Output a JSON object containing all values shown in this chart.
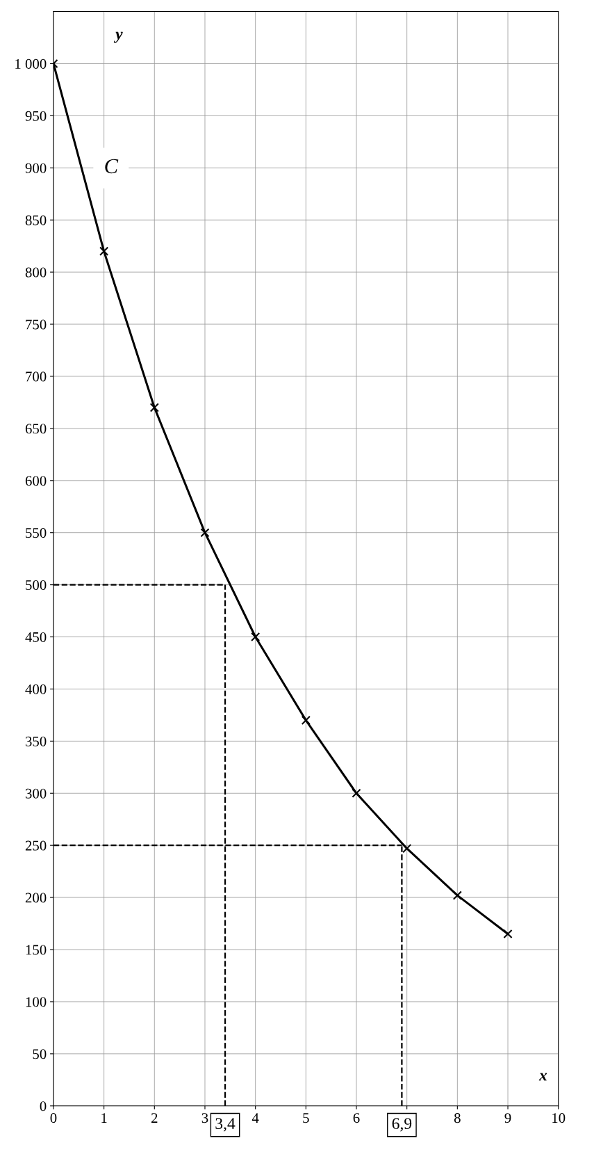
{
  "chart_data": {
    "type": "line",
    "xlabel": "x",
    "ylabel": "y",
    "x": [
      0,
      1,
      2,
      3,
      4,
      5,
      6,
      7,
      8,
      9
    ],
    "series": [
      {
        "color": "#000000",
        "values": [
          1000,
          820,
          670,
          550,
          450,
          370,
          300,
          247,
          202,
          165
        ]
      }
    ],
    "xlim": [
      0,
      10
    ],
    "ylim": [
      0,
      1050
    ],
    "xticks": [
      0,
      1,
      2,
      3,
      4,
      5,
      6,
      {
        "value": 7,
        "label": null
      },
      8,
      9,
      10
    ],
    "yticks": [
      0,
      50,
      100,
      150,
      200,
      250,
      300,
      350,
      400,
      450,
      500,
      550,
      600,
      650,
      700,
      750,
      800,
      850,
      900,
      950,
      {
        "value": 1000,
        "label": "1 000"
      }
    ],
    "grid": true,
    "marker": "cross",
    "line_style": "solid",
    "ref_lines": [
      {
        "axis": "y",
        "value": 500,
        "line_style": "dashed",
        "color": "#000000"
      },
      {
        "axis": "x",
        "value": 3.4,
        "label": "3,4",
        "line_style": "dashed",
        "color": "#000000"
      },
      {
        "axis": "y",
        "value": 250,
        "line_style": "dashed",
        "color": "#000000"
      },
      {
        "axis": "x",
        "value": 6.9,
        "label": "6,9",
        "line_style": "dashed",
        "color": "#000000"
      }
    ],
    "annotations": [
      "C"
    ]
  }
}
